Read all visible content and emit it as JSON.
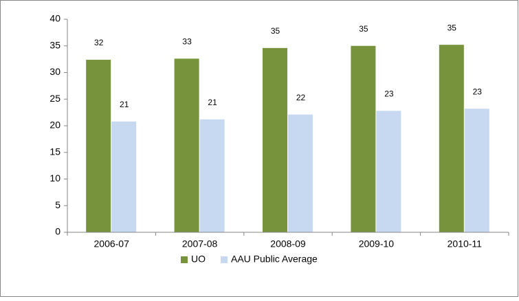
{
  "chart_data": {
    "type": "bar",
    "categories": [
      "2006-07",
      "2007-08",
      "2008-09",
      "2009-10",
      "2010-11"
    ],
    "series": [
      {
        "name": "UO",
        "color": "#77933c",
        "values": [
          32.4,
          32.6,
          34.6,
          35.0,
          35.2
        ],
        "value_labels": [
          "32",
          "33",
          "35",
          "35",
          "35"
        ]
      },
      {
        "name": "AAU Public Average",
        "color": "#c6d9f1",
        "values": [
          20.8,
          21.2,
          22.1,
          22.8,
          23.2
        ],
        "value_labels": [
          "21",
          "21",
          "22",
          "23",
          "23"
        ]
      }
    ],
    "ylim": [
      0,
      40
    ],
    "yticks": [
      0,
      5,
      10,
      15,
      20,
      25,
      30,
      35,
      40
    ],
    "grid": false,
    "legend": "bottom"
  }
}
